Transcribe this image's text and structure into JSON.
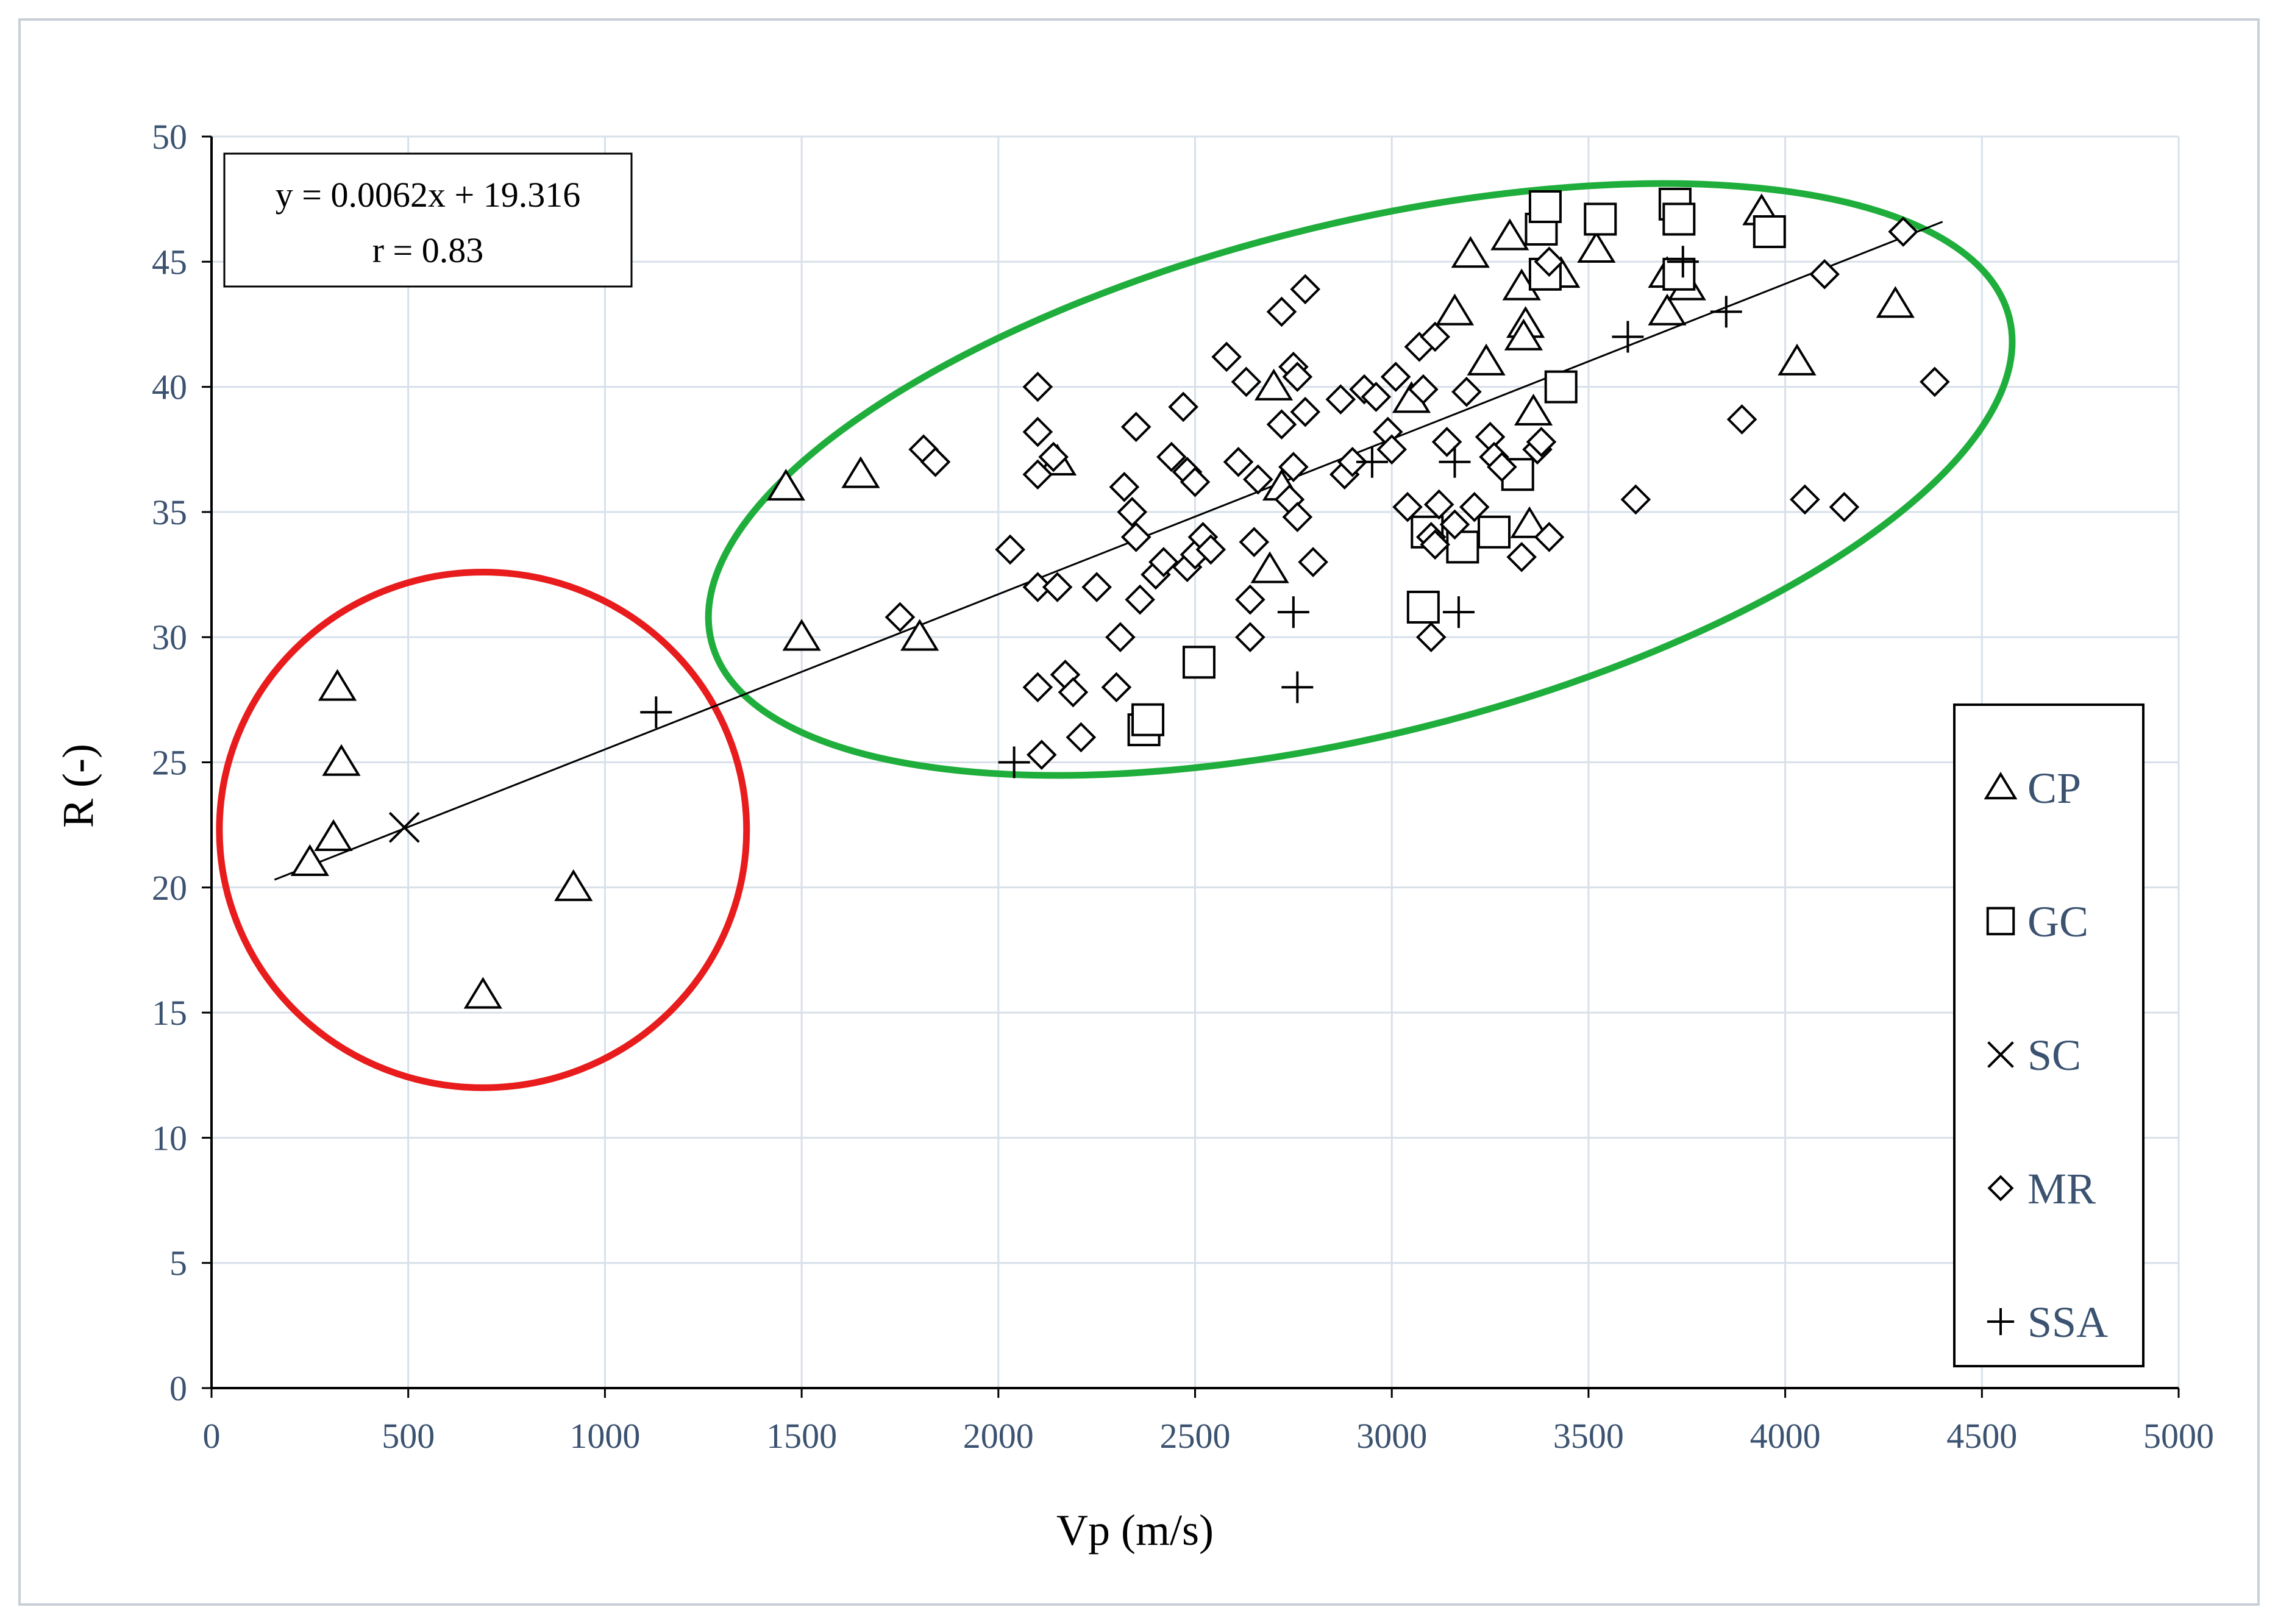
{
  "chart_data": {
    "type": "scatter",
    "xlabel": "Vp (m/s)",
    "ylabel": "R (-)",
    "xlim": [
      0,
      5000
    ],
    "ylim": [
      0,
      50
    ],
    "xticks": [
      0,
      500,
      1000,
      1500,
      2000,
      2500,
      3000,
      3500,
      4000,
      4500,
      5000
    ],
    "yticks": [
      0,
      5,
      10,
      15,
      20,
      25,
      30,
      35,
      40,
      45,
      50
    ],
    "grid": true,
    "legend_position": "right",
    "annotation": {
      "equation": "y = 0.0062x + 19.316",
      "correlation": "r = 0.83"
    },
    "trendline": {
      "slope": 0.0062,
      "intercept": 19.316,
      "x_range": [
        160,
        4400
      ]
    },
    "highlight_ellipses": [
      {
        "color": "#e81c1c",
        "center": [
          690,
          22.3
        ],
        "rx": 670,
        "ry": 10.3,
        "rotation_deg": 0
      },
      {
        "color": "#1fae3c",
        "center": [
          2920,
          36.3
        ],
        "rx": 1700,
        "ry": 10.2,
        "rotation_deg": -14
      }
    ],
    "series": [
      {
        "name": "CP",
        "marker": "triangle",
        "points": [
          [
            250,
            21
          ],
          [
            310,
            22
          ],
          [
            320,
            28
          ],
          [
            330,
            25
          ],
          [
            690,
            15.7
          ],
          [
            920,
            20
          ],
          [
            1460,
            36
          ],
          [
            1500,
            30
          ],
          [
            1650,
            36.5
          ],
          [
            1800,
            30
          ],
          [
            2150,
            37
          ],
          [
            2700,
            40
          ],
          [
            2690,
            32.7
          ],
          [
            2720,
            36
          ],
          [
            3050,
            39.5
          ],
          [
            3160,
            43
          ],
          [
            3200,
            45.3
          ],
          [
            3240,
            41
          ],
          [
            3300,
            46
          ],
          [
            3330,
            44
          ],
          [
            3340,
            42.5
          ],
          [
            3335,
            42
          ],
          [
            3360,
            39
          ],
          [
            3350,
            34.5
          ],
          [
            3430,
            44.5
          ],
          [
            3520,
            45.5
          ],
          [
            3700,
            44.5
          ],
          [
            3700,
            43
          ],
          [
            3750,
            44
          ],
          [
            3940,
            47
          ],
          [
            4030,
            41
          ],
          [
            4280,
            43.3
          ]
        ]
      },
      {
        "name": "GC",
        "marker": "square",
        "points": [
          [
            2370,
            26.3
          ],
          [
            2380,
            26.7
          ],
          [
            2510,
            29
          ],
          [
            3080,
            31.2
          ],
          [
            3090,
            34.2
          ],
          [
            3180,
            33.6
          ],
          [
            3260,
            34.2
          ],
          [
            3320,
            36.5
          ],
          [
            3380,
            46.3
          ],
          [
            3390,
            44.5
          ],
          [
            3390,
            47.2
          ],
          [
            3430,
            40
          ],
          [
            3530,
            46.7
          ],
          [
            3720,
            47.3
          ],
          [
            3730,
            46.7
          ],
          [
            3730,
            44.5
          ],
          [
            3960,
            46.2
          ]
        ]
      },
      {
        "name": "SC",
        "marker": "x",
        "points": [
          [
            490,
            22.4
          ]
        ]
      },
      {
        "name": "MR",
        "marker": "diamond",
        "points": [
          [
            1750,
            30.8
          ],
          [
            1810,
            37.5
          ],
          [
            1840,
            37
          ],
          [
            2030,
            33.5
          ],
          [
            2100,
            40
          ],
          [
            2100,
            38.2
          ],
          [
            2100,
            36.5
          ],
          [
            2100,
            32
          ],
          [
            2100,
            28
          ],
          [
            2110,
            25.3
          ],
          [
            2140,
            37.2
          ],
          [
            2150,
            32
          ],
          [
            2170,
            28.5
          ],
          [
            2190,
            27.8
          ],
          [
            2210,
            26
          ],
          [
            2250,
            32
          ],
          [
            2300,
            28
          ],
          [
            2310,
            30
          ],
          [
            2320,
            36
          ],
          [
            2340,
            35
          ],
          [
            2350,
            38.4
          ],
          [
            2350,
            34
          ],
          [
            2360,
            31.5
          ],
          [
            2400,
            32.5
          ],
          [
            2420,
            33
          ],
          [
            2440,
            37.2
          ],
          [
            2470,
            39.2
          ],
          [
            2480,
            36.6
          ],
          [
            2480,
            32.8
          ],
          [
            2500,
            33.3
          ],
          [
            2500,
            36.2
          ],
          [
            2520,
            34
          ],
          [
            2540,
            33.5
          ],
          [
            2580,
            41.2
          ],
          [
            2610,
            37
          ],
          [
            2630,
            40.2
          ],
          [
            2640,
            31.5
          ],
          [
            2640,
            30
          ],
          [
            2650,
            33.8
          ],
          [
            2660,
            36.3
          ],
          [
            2720,
            38.5
          ],
          [
            2720,
            43
          ],
          [
            2740,
            35.5
          ],
          [
            2750,
            36.8
          ],
          [
            2750,
            40.8
          ],
          [
            2760,
            40.4
          ],
          [
            2760,
            34.8
          ],
          [
            2780,
            39
          ],
          [
            2780,
            43.9
          ],
          [
            2800,
            33
          ],
          [
            2870,
            39.5
          ],
          [
            2880,
            36.5
          ],
          [
            2900,
            37
          ],
          [
            2930,
            39.9
          ],
          [
            2960,
            39.6
          ],
          [
            2990,
            38.2
          ],
          [
            3000,
            37.5
          ],
          [
            3010,
            40.4
          ],
          [
            3040,
            35.2
          ],
          [
            3070,
            41.6
          ],
          [
            3080,
            39.9
          ],
          [
            3100,
            30
          ],
          [
            3100,
            34
          ],
          [
            3110,
            33.7
          ],
          [
            3110,
            42
          ],
          [
            3120,
            35.3
          ],
          [
            3140,
            37.8
          ],
          [
            3160,
            34.5
          ],
          [
            3190,
            39.8
          ],
          [
            3210,
            35.2
          ],
          [
            3250,
            38
          ],
          [
            3260,
            37.2
          ],
          [
            3280,
            36.8
          ],
          [
            3330,
            33.2
          ],
          [
            3370,
            37.5
          ],
          [
            3380,
            37.8
          ],
          [
            3400,
            34
          ],
          [
            3400,
            45
          ],
          [
            4050,
            35.5
          ],
          [
            3890,
            38.7
          ],
          [
            4100,
            44.5
          ],
          [
            4150,
            35.2
          ],
          [
            4300,
            46.2
          ],
          [
            4380,
            40.2
          ],
          [
            3620,
            35.5
          ]
        ]
      },
      {
        "name": "SSA",
        "marker": "plus",
        "points": [
          [
            1130,
            27
          ],
          [
            2040,
            25
          ],
          [
            2750,
            31
          ],
          [
            2760,
            28
          ],
          [
            2950,
            37
          ],
          [
            3160,
            37
          ],
          [
            3170,
            31
          ],
          [
            3600,
            42
          ],
          [
            3740,
            45
          ],
          [
            3850,
            43
          ]
        ]
      }
    ]
  },
  "legend": {
    "items": [
      {
        "label": "CP",
        "marker": "triangle"
      },
      {
        "label": "GC",
        "marker": "square"
      },
      {
        "label": "SC",
        "marker": "x"
      },
      {
        "label": "MR",
        "marker": "diamond"
      },
      {
        "label": "SSA",
        "marker": "plus"
      }
    ]
  },
  "colors": {
    "tick_text": "#3b5270",
    "grid": "#d8e0ea",
    "marker_stroke": "#000000",
    "trendline": "#000000"
  }
}
